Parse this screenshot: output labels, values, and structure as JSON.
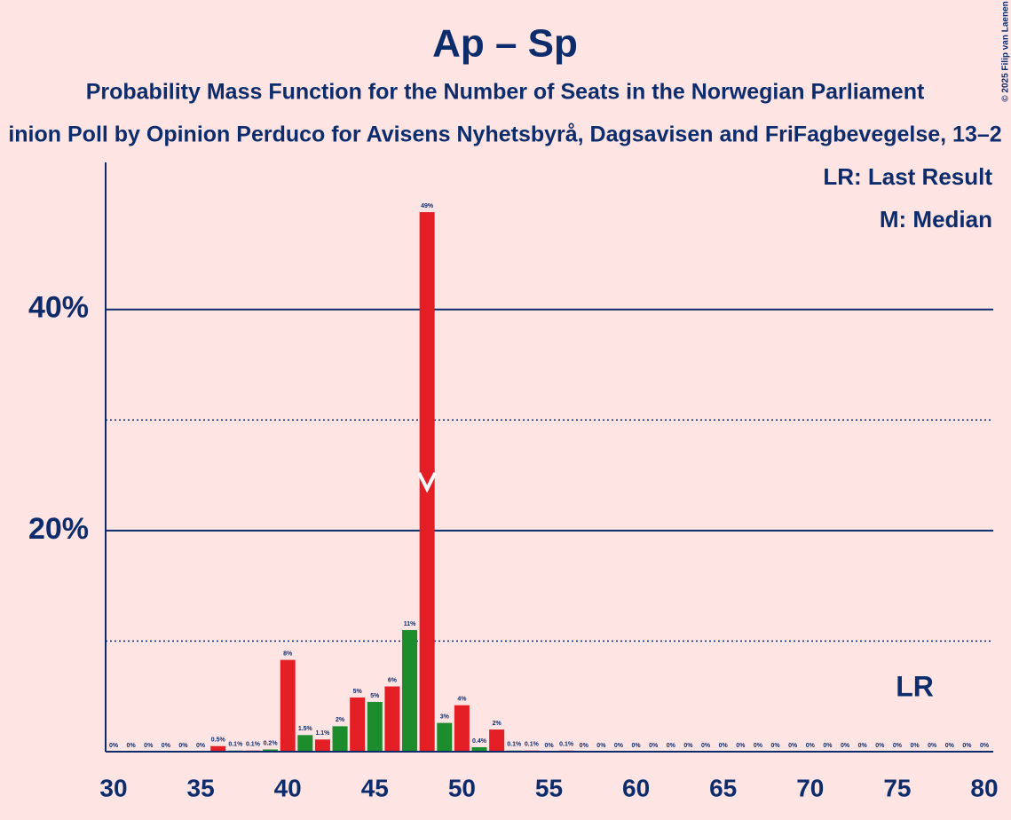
{
  "chart_data": {
    "type": "bar",
    "title": "Ap – Sp",
    "subtitle": "Probability Mass Function for the Number of Seats in the Norwegian Parliament",
    "subtitle2": "inion Poll by Opinion Perduco for Avisens Nyhetsbyrå, Dagsavisen and FriFagbevegelse, 13–2",
    "copyright": "© 2025 Filip van Laenen",
    "legend": [
      "LR: Last Result",
      "M: Median"
    ],
    "last_result_label": "LR",
    "last_result": 76,
    "median": 48,
    "x": [
      30,
      31,
      32,
      33,
      34,
      35,
      36,
      37,
      38,
      39,
      40,
      41,
      42,
      43,
      44,
      45,
      46,
      47,
      48,
      49,
      50,
      51,
      52,
      53,
      54,
      55,
      56,
      57,
      58,
      59,
      60,
      61,
      62,
      63,
      64,
      65,
      66,
      67,
      68,
      69,
      70,
      71,
      72,
      73,
      74,
      75,
      76,
      77,
      78,
      79,
      80
    ],
    "values": [
      0,
      0,
      0,
      0,
      0,
      0,
      0.5,
      0.1,
      0.1,
      0.2,
      8.3,
      1.5,
      1.1,
      2.3,
      4.9,
      4.5,
      5.9,
      11.0,
      48.8,
      2.6,
      4.2,
      0.4,
      2.0,
      0.1,
      0.1,
      0,
      0.1,
      0,
      0,
      0,
      0,
      0,
      0,
      0,
      0,
      0,
      0,
      0,
      0,
      0,
      0,
      0,
      0,
      0,
      0,
      0,
      0,
      0,
      0,
      0,
      0
    ],
    "value_labels": [
      "0%",
      "0%",
      "0%",
      "0%",
      "0%",
      "0%",
      "0.5%",
      "0.1%",
      "0.1%",
      "0.2%",
      "8%",
      "1.5%",
      "1.1%",
      "2%",
      "5%",
      "5%",
      "6%",
      "11%",
      "49%",
      "3%",
      "4%",
      "0.4%",
      "2%",
      "0.1%",
      "0.1%",
      "0%",
      "0.1%",
      "0%",
      "0%",
      "0%",
      "0%",
      "0%",
      "0%",
      "0%",
      "0%",
      "0%",
      "0%",
      "0%",
      "0%",
      "0%",
      "0%",
      "0%",
      "0%",
      "0%",
      "0%",
      "0%",
      "0%",
      "0%",
      "0%",
      "0%",
      "0%"
    ],
    "colors": [
      "#e31e24",
      "#1c8c2c",
      "#e31e24",
      "#1c8c2c",
      "#e31e24",
      "#1c8c2c",
      "#e31e24",
      "#1c8c2c",
      "#e31e24",
      "#1c8c2c",
      "#e31e24",
      "#1c8c2c",
      "#e31e24",
      "#1c8c2c",
      "#e31e24",
      "#1c8c2c",
      "#e31e24",
      "#1c8c2c",
      "#e31e24",
      "#1c8c2c",
      "#e31e24",
      "#1c8c2c",
      "#e31e24",
      "#1c8c2c",
      "#e31e24",
      "#1c8c2c",
      "#e31e24",
      "#1c8c2c",
      "#e31e24",
      "#1c8c2c",
      "#e31e24",
      "#1c8c2c",
      "#e31e24",
      "#1c8c2c",
      "#e31e24",
      "#1c8c2c",
      "#e31e24",
      "#1c8c2c",
      "#e31e24",
      "#1c8c2c",
      "#e31e24",
      "#1c8c2c",
      "#e31e24",
      "#1c8c2c",
      "#e31e24",
      "#1c8c2c",
      "#e31e24",
      "#1c8c2c",
      "#e31e24",
      "#1c8c2c",
      "#e31e24"
    ],
    "xlim": [
      29.5,
      80.5
    ],
    "xticks": [
      30,
      35,
      40,
      45,
      50,
      55,
      60,
      65,
      70,
      75,
      80
    ],
    "ylim": [
      0,
      53.3
    ],
    "yticks": [
      {
        "value": 20,
        "label": "20%"
      },
      {
        "value": 40,
        "label": "40%"
      }
    ],
    "minor_yticks": [
      10,
      30
    ]
  }
}
